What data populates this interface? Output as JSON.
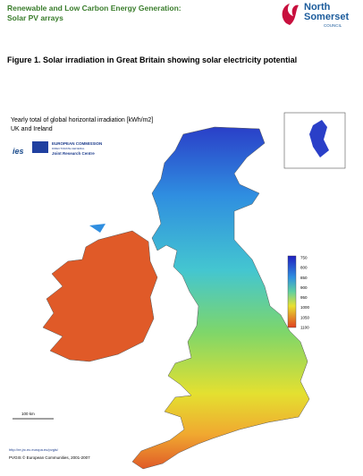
{
  "header": {
    "title": "Renewable and Low Carbon Energy Generation:",
    "subtitle": "Solar PV arrays"
  },
  "logo": {
    "line1": "North",
    "line2": "Somerset",
    "line3": "COUNCIL"
  },
  "figure": {
    "caption": "Figure 1. Solar irradiation in Great Britain showing solar electricity potential",
    "map_title": "Yearly total of global horizontal irradiation [kWh/m2]",
    "map_subtitle": "UK and Ireland",
    "ies": "ies",
    "ec_line1": "EUROPEAN COMMISSION",
    "ec_line2": "DIRECTORATE-GENERAL",
    "ec_line3": "Joint Research Centre",
    "legend": [
      750,
      800,
      850,
      900,
      950,
      1000,
      1050,
      1100
    ],
    "scale": "100 km",
    "url": "http://re.jrc.ec.europa.eu/pvgis/",
    "copyright": "PVGIS © European Communities, 2001-2007"
  }
}
